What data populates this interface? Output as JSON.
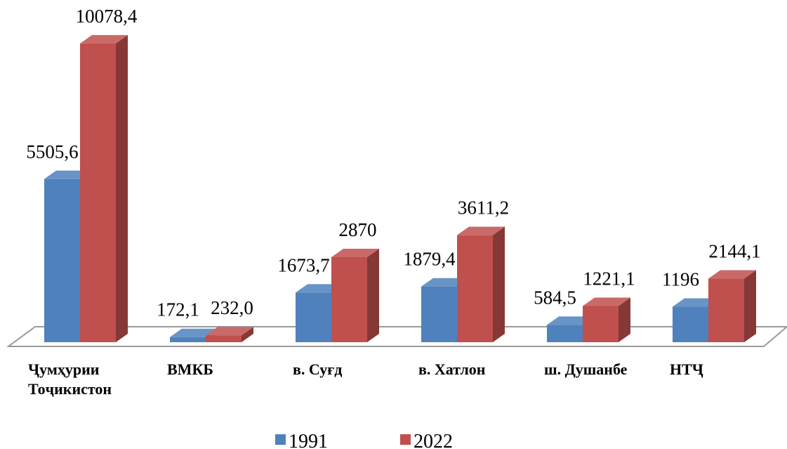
{
  "chart_data": {
    "type": "bar3d",
    "categories": [
      "Ҷумҳурии Тоҷикистон",
      "ВМКБ",
      "в. Суғд",
      "в. Хатлон",
      "ш. Душанбе",
      "НТҶ"
    ],
    "series": [
      {
        "name": "1991",
        "color": "#4f81bd",
        "values": [
          5505.6,
          172.1,
          1673.7,
          1879.4,
          584.5,
          1196
        ],
        "value_labels": [
          "5505,6",
          "172,1",
          "1673,7",
          "1879,4",
          "584,5",
          "1196"
        ]
      },
      {
        "name": "2022",
        "color": "#c0504d",
        "values": [
          10078.4,
          232.0,
          2870,
          3611.2,
          1221.1,
          2144.1
        ],
        "value_labels": [
          "10078,4",
          "232,0",
          "2870",
          "3611,2",
          "1221,1",
          "2144,1"
        ]
      }
    ],
    "ylim": [
      0,
      11000
    ],
    "legend": "bottom"
  }
}
